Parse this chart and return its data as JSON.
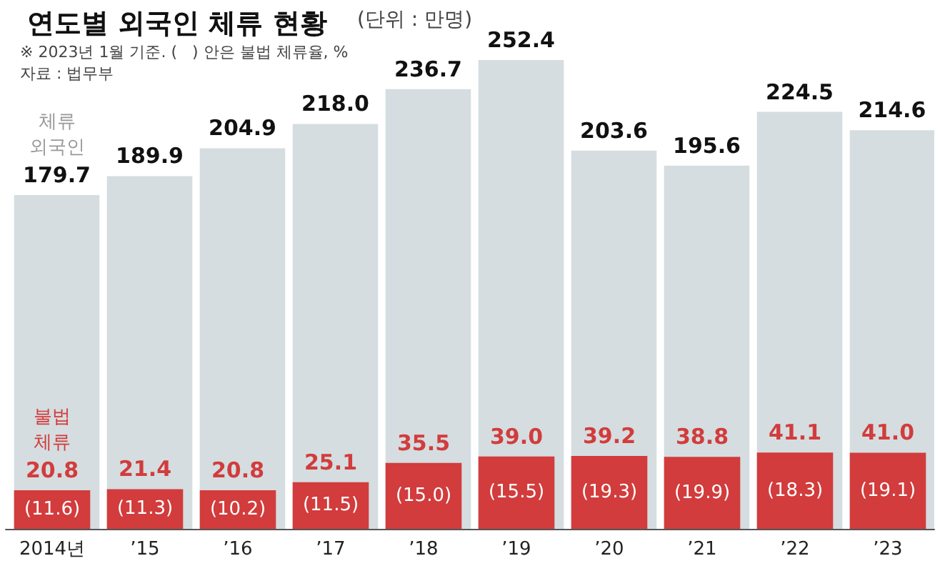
{
  "chart_data": {
    "type": "bar",
    "title": "연도별 외국인 체류 현황",
    "subtitle": "(단위 : 만명)",
    "categories": [
      "2014년",
      "’15",
      "’16",
      "’17",
      "’18",
      "’19",
      "’20",
      "’21",
      "’22",
      "’23"
    ],
    "series": [
      {
        "name": "체류 외국인",
        "color": "#d5dde0",
        "values": [
          179.7,
          189.9,
          204.9,
          218.0,
          236.7,
          252.4,
          203.6,
          195.6,
          224.5,
          214.6
        ],
        "value_labels": [
          "179.7",
          "189.9",
          "204.9",
          "218.0",
          "236.7",
          "252.4",
          "203.6",
          "195.6",
          "224.5",
          "214.6"
        ]
      },
      {
        "name": "불법 체류",
        "color": "#d23c3c",
        "values": [
          20.8,
          21.4,
          20.8,
          25.1,
          35.5,
          39.0,
          39.2,
          38.8,
          41.1,
          41.0
        ],
        "value_labels": [
          "20.8",
          "21.4",
          "20.8",
          "25.1",
          "35.5",
          "39.0",
          "39.2",
          "38.8",
          "41.1",
          "41.0"
        ]
      }
    ],
    "annotations": [
      "※ 2023년 1월 기준. (   ) 안은 불법 체류율, %",
      "자료 : 법무부",
      {
        "text": "(11.6)",
        "x": "2014년",
        "y": 20.8
      },
      {
        "text": "(11.3)",
        "x": "’15",
        "y": 21.4
      },
      {
        "text": "(10.2)",
        "x": "’16",
        "y": 20.8
      },
      {
        "text": "(11.5)",
        "x": "’17",
        "y": 25.1
      },
      {
        "text": "(15.0)",
        "x": "’18",
        "y": 35.5
      },
      {
        "text": "(15.5)",
        "x": "’19",
        "y": 39.0
      },
      {
        "text": "(19.3)",
        "x": "’20",
        "y": 39.2
      },
      {
        "text": "(19.9)",
        "x": "’21",
        "y": 38.8
      },
      {
        "text": "(18.3)",
        "x": "’22",
        "y": 41.1
      },
      {
        "text": "(19.1)",
        "x": "’23",
        "y": 41.0
      }
    ],
    "legend": false
  }
}
